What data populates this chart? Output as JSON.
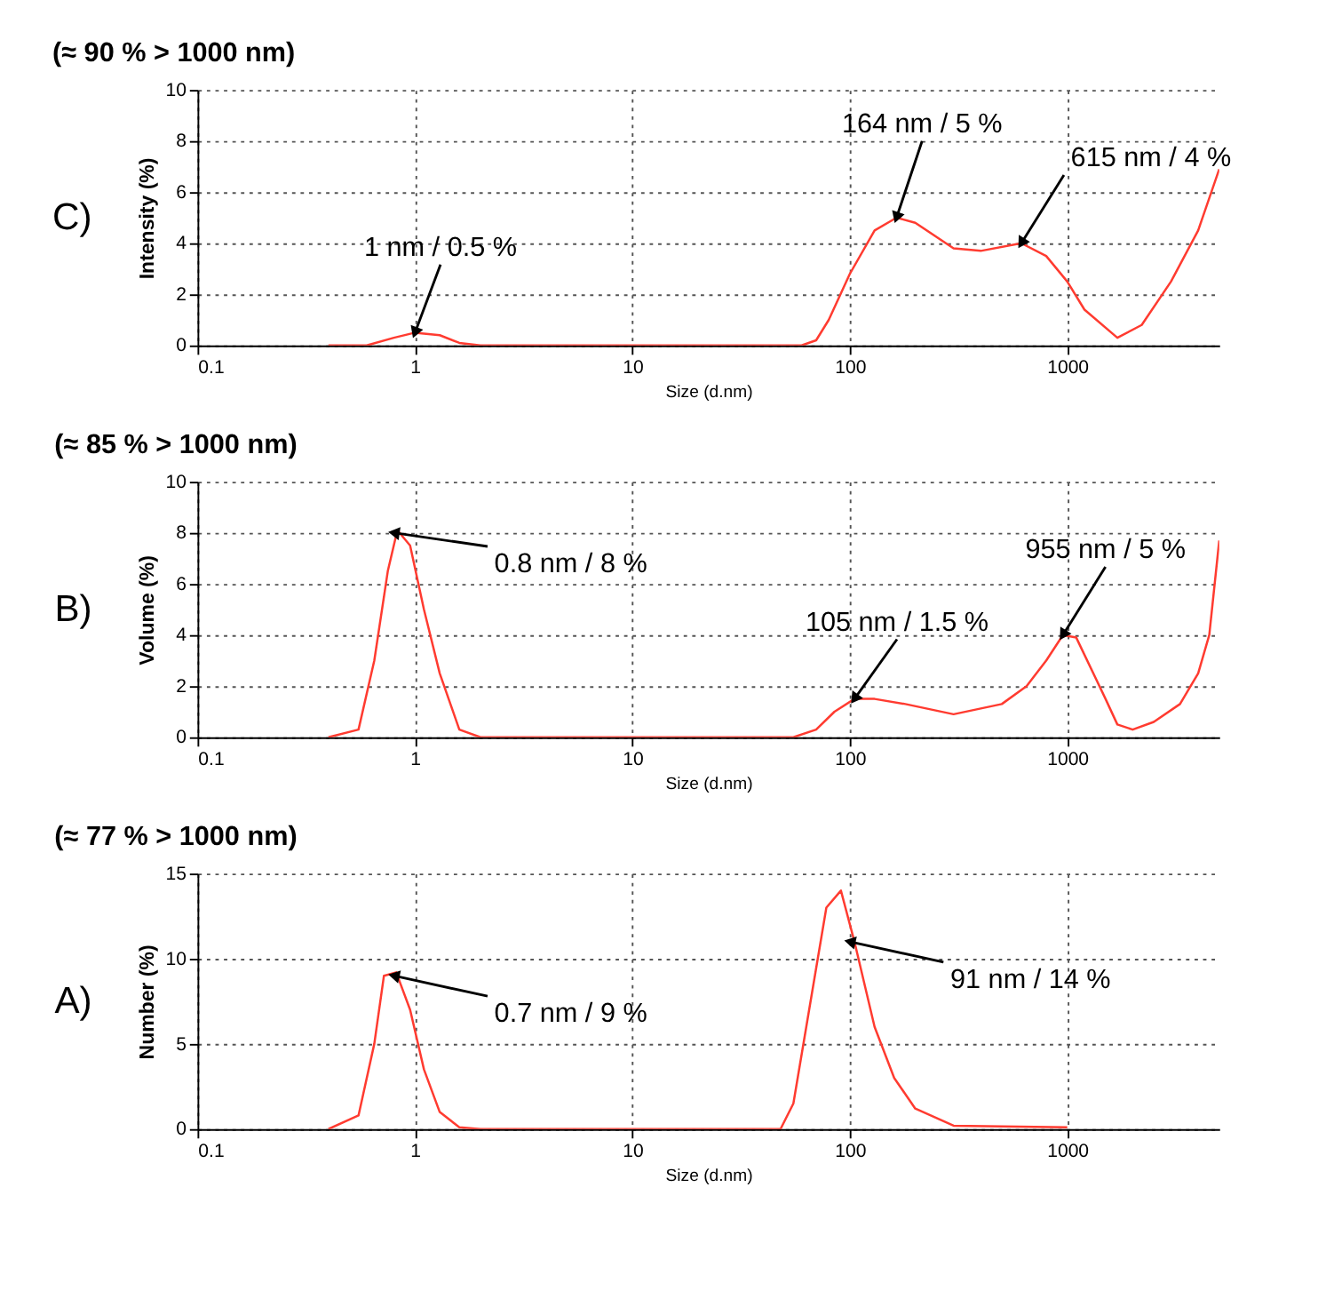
{
  "chart_data": [
    {
      "type": "line",
      "title": "(≈ 90  % > 1000 nm)",
      "xlabel": "Size (d.nm)",
      "ylabel": "Intensity (%)",
      "log": "x",
      "grid": true,
      "marker": "none",
      "line_style": "solid",
      "xlim": [
        0.1,
        5000
      ],
      "xticks": [
        0.1,
        1,
        10,
        100,
        1000
      ],
      "ylim": [
        0,
        10
      ],
      "yticks": [
        0,
        2,
        4,
        6,
        8,
        10
      ],
      "series": [
        {
          "color": "#ff3b30",
          "x": [
            0.4,
            0.6,
            0.8,
            1,
            1.3,
            1.6,
            2,
            60,
            70,
            80,
            100,
            130,
            164,
            200,
            300,
            400,
            615,
            800,
            1000,
            1200,
            1700,
            2200,
            3000,
            4000,
            5000
          ],
          "values": [
            0,
            0,
            0.3,
            0.5,
            0.4,
            0.1,
            0,
            0,
            0.2,
            1,
            2.8,
            4.5,
            5,
            4.8,
            3.8,
            3.7,
            4,
            3.5,
            2.5,
            1.4,
            0.3,
            0.8,
            2.5,
            4.5,
            6.9
          ]
        }
      ],
      "annotations": [
        "C)",
        {
          "text": "1 nm / 0.5 %",
          "x": 1,
          "y": 0.5
        },
        {
          "text": "164 nm / 5 %",
          "x": 164,
          "y": 5
        },
        {
          "text": "615 nm / 4 %",
          "x": 615,
          "y": 4
        }
      ]
    },
    {
      "type": "line",
      "title": "(≈ 85  % > 1000 nm)",
      "xlabel": "Size (d.nm)",
      "ylabel": "Volume (%)",
      "log": "x",
      "grid": true,
      "marker": "none",
      "line_style": "solid",
      "xlim": [
        0.1,
        5000
      ],
      "xticks": [
        0.1,
        1,
        10,
        100,
        1000
      ],
      "ylim": [
        0,
        10
      ],
      "yticks": [
        0,
        2,
        4,
        6,
        8,
        10
      ],
      "series": [
        {
          "color": "#ff3b30",
          "x": [
            0.4,
            0.55,
            0.65,
            0.75,
            0.83,
            0.95,
            1.1,
            1.3,
            1.6,
            2,
            55,
            70,
            85,
            105,
            130,
            180,
            300,
            500,
            650,
            800,
            955,
            1100,
            1500,
            1700,
            2000,
            2500,
            3300,
            4000,
            4500,
            5000
          ],
          "values": [
            0,
            0.3,
            3,
            6.5,
            8.1,
            7.5,
            5,
            2.5,
            0.3,
            0,
            0,
            0.3,
            1,
            1.5,
            1.5,
            1.3,
            0.9,
            1.3,
            2,
            3,
            4,
            3.9,
            1.5,
            0.5,
            0.3,
            0.6,
            1.3,
            2.5,
            4,
            7.7
          ]
        }
      ],
      "annotations": [
        "B)",
        {
          "text": "0.8 nm / 8 %",
          "x": 0.8,
          "y": 8
        },
        {
          "text": "105 nm / 1.5 %",
          "x": 105,
          "y": 1.5
        },
        {
          "text": "955 nm / 5 %",
          "x": 955,
          "y": 4
        }
      ]
    },
    {
      "type": "line",
      "title": "(≈ 77 % > 1000 nm)",
      "xlabel": "Size (d.nm)",
      "ylabel": "Number (%)",
      "log": "x",
      "grid": true,
      "marker": "none",
      "line_style": "solid",
      "xlim": [
        0.1,
        5000
      ],
      "xticks": [
        0.1,
        1,
        10,
        100,
        1000
      ],
      "ylim": [
        0,
        15
      ],
      "yticks": [
        0,
        5,
        10,
        15
      ],
      "series": [
        {
          "color": "#ff3b30",
          "x": [
            0.4,
            0.55,
            0.65,
            0.72,
            0.82,
            0.95,
            1.1,
            1.3,
            1.6,
            2,
            48,
            55,
            65,
            78,
            91,
            105,
            130,
            160,
            200,
            300,
            1000
          ],
          "values": [
            0,
            0.8,
            5,
            9,
            9.2,
            7,
            3.5,
            1,
            0.1,
            0,
            0,
            1.5,
            7,
            13,
            14,
            11,
            6,
            3,
            1.2,
            0.2,
            0.1
          ]
        }
      ],
      "annotations": [
        "A)",
        {
          "text": "0.7 nm / 9 %",
          "x": 0.8,
          "y": 9
        },
        {
          "text": "91 nm / 14 %",
          "x": 100,
          "y": 11
        }
      ]
    }
  ]
}
